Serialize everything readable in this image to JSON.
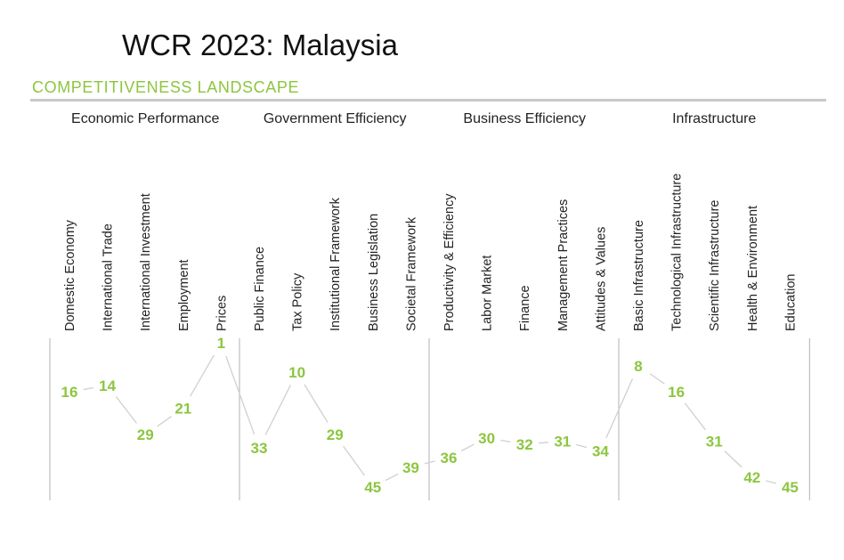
{
  "title": "WCR 2023: Malaysia",
  "subtitle": "COMPETITIVENESS LANDSCAPE",
  "colors": {
    "accent": "#8cc63f",
    "line": "#d0d0d0",
    "divider": "#bdbdbd",
    "text": "#222222"
  },
  "chart_data": {
    "type": "line",
    "y_axis": "rank (lower is better, plotted top)",
    "ylim": [
      1,
      45
    ],
    "factors": [
      {
        "name": "Economic Performance",
        "subfactors": [
          {
            "label": "Domestic Economy",
            "rank": 16
          },
          {
            "label": "International Trade",
            "rank": 14
          },
          {
            "label": "International Investment",
            "rank": 29
          },
          {
            "label": "Employment",
            "rank": 21
          },
          {
            "label": "Prices",
            "rank": 1
          }
        ]
      },
      {
        "name": "Government Efficiency",
        "subfactors": [
          {
            "label": "Public Finance",
            "rank": 33
          },
          {
            "label": "Tax Policy",
            "rank": 10
          },
          {
            "label": "Institutional Framework",
            "rank": 29
          },
          {
            "label": "Business Legislation",
            "rank": 45
          },
          {
            "label": "Societal Framework",
            "rank": 39
          }
        ]
      },
      {
        "name": "Business Efficiency",
        "subfactors": [
          {
            "label": "Productivity & Efficiency",
            "rank": 36
          },
          {
            "label": "Labor Market",
            "rank": 30
          },
          {
            "label": "Finance",
            "rank": 32
          },
          {
            "label": "Management Practices",
            "rank": 31
          },
          {
            "label": "Attitudes & Values",
            "rank": 34
          }
        ]
      },
      {
        "name": "Infrastructure",
        "subfactors": [
          {
            "label": "Basic Infrastructure",
            "rank": 8
          },
          {
            "label": "Technological Infrastructure",
            "rank": 16
          },
          {
            "label": "Scientific Infrastructure",
            "rank": 31
          },
          {
            "label": "Health & Environment",
            "rank": 42
          },
          {
            "label": "Education",
            "rank": 45
          }
        ]
      }
    ]
  }
}
